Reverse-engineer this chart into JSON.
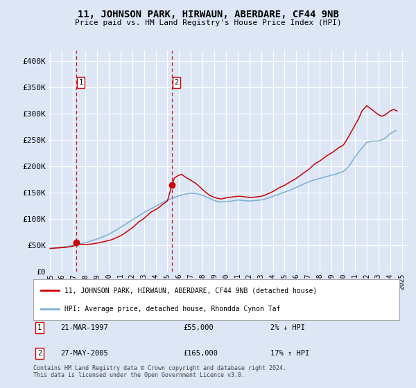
{
  "title": "11, JOHNSON PARK, HIRWAUN, ABERDARE, CF44 9NB",
  "subtitle": "Price paid vs. HM Land Registry's House Price Index (HPI)",
  "background_color": "#dce6f5",
  "plot_bg_color": "#dce6f5",
  "transactions": [
    {
      "num": 1,
      "date": "21-MAR-1997",
      "price": 55000,
      "year": 1997.22,
      "pct": "2%",
      "dir": "↓"
    },
    {
      "num": 2,
      "date": "27-MAY-2005",
      "price": 165000,
      "year": 2005.4,
      "pct": "17%",
      "dir": "↑"
    }
  ],
  "hpi_x": [
    1995.0,
    1995.5,
    1996.0,
    1996.5,
    1997.0,
    1997.5,
    1998.0,
    1998.5,
    1999.0,
    1999.5,
    2000.0,
    2000.5,
    2001.0,
    2001.5,
    2002.0,
    2002.5,
    2003.0,
    2003.5,
    2004.0,
    2004.5,
    2005.0,
    2005.5,
    2006.0,
    2006.5,
    2007.0,
    2007.5,
    2008.0,
    2008.5,
    2009.0,
    2009.5,
    2010.0,
    2010.5,
    2011.0,
    2011.5,
    2012.0,
    2012.5,
    2013.0,
    2013.5,
    2014.0,
    2014.5,
    2015.0,
    2015.5,
    2016.0,
    2016.5,
    2017.0,
    2017.5,
    2018.0,
    2018.5,
    2019.0,
    2019.5,
    2020.0,
    2020.5,
    2021.0,
    2021.5,
    2022.0,
    2022.5,
    2023.0,
    2023.5,
    2024.0,
    2024.5
  ],
  "hpi_y": [
    44000,
    45000,
    46500,
    48000,
    50000,
    52000,
    55000,
    58000,
    62000,
    66000,
    71000,
    77000,
    84000,
    91000,
    98000,
    105000,
    112000,
    118000,
    124000,
    130000,
    136000,
    140000,
    144000,
    147000,
    149000,
    148000,
    145000,
    140000,
    135000,
    132000,
    133000,
    134000,
    136000,
    135000,
    134000,
    135000,
    136000,
    139000,
    143000,
    147000,
    151000,
    155000,
    160000,
    165000,
    170000,
    174000,
    177000,
    180000,
    183000,
    186000,
    190000,
    200000,
    218000,
    232000,
    245000,
    248000,
    248000,
    252000,
    262000,
    268000
  ],
  "paid_x": [
    1995.0,
    1995.3,
    1995.6,
    1996.0,
    1996.3,
    1996.6,
    1997.0,
    1997.22,
    1997.5,
    1997.8,
    1998.1,
    1998.4,
    1998.7,
    1999.0,
    1999.3,
    1999.6,
    2000.0,
    2000.3,
    2000.6,
    2001.0,
    2001.3,
    2001.6,
    2002.0,
    2002.3,
    2002.6,
    2003.0,
    2003.3,
    2003.6,
    2004.0,
    2004.3,
    2004.6,
    2005.0,
    2005.4,
    2005.6,
    2005.9,
    2006.2,
    2006.5,
    2006.8,
    2007.1,
    2007.4,
    2007.7,
    2008.0,
    2008.3,
    2008.6,
    2009.0,
    2009.3,
    2009.6,
    2010.0,
    2010.3,
    2010.6,
    2011.0,
    2011.3,
    2011.6,
    2012.0,
    2012.3,
    2012.6,
    2013.0,
    2013.3,
    2013.6,
    2014.0,
    2014.3,
    2014.6,
    2015.0,
    2015.3,
    2015.6,
    2016.0,
    2016.3,
    2016.6,
    2017.0,
    2017.3,
    2017.6,
    2018.0,
    2018.3,
    2018.6,
    2019.0,
    2019.3,
    2019.6,
    2020.0,
    2020.3,
    2020.6,
    2021.0,
    2021.3,
    2021.6,
    2022.0,
    2022.3,
    2022.6,
    2023.0,
    2023.3,
    2023.6,
    2024.0,
    2024.3,
    2024.6
  ],
  "paid_y": [
    44000,
    44500,
    45000,
    45500,
    46000,
    47000,
    48500,
    55000,
    52000,
    51000,
    51500,
    52000,
    53000,
    54000,
    55500,
    57000,
    59000,
    61000,
    64000,
    68000,
    72000,
    77000,
    83000,
    89000,
    95000,
    101000,
    107000,
    113000,
    118000,
    122000,
    128000,
    134000,
    165000,
    178000,
    182000,
    185000,
    180000,
    176000,
    172000,
    168000,
    162000,
    156000,
    150000,
    145000,
    141000,
    139000,
    138000,
    140000,
    141000,
    142000,
    143000,
    143000,
    142000,
    141000,
    141000,
    142000,
    143000,
    145000,
    148000,
    152000,
    156000,
    160000,
    164000,
    168000,
    172000,
    177000,
    182000,
    187000,
    193000,
    199000,
    205000,
    210000,
    215000,
    220000,
    225000,
    230000,
    235000,
    240000,
    250000,
    262000,
    278000,
    290000,
    305000,
    315000,
    310000,
    305000,
    298000,
    295000,
    298000,
    305000,
    308000,
    305000
  ],
  "line_color_paid": "#cc0000",
  "line_color_hpi": "#7aafd4",
  "marker_color": "#cc0000",
  "dashed_color": "#cc0000",
  "ylim": [
    0,
    420000
  ],
  "yticks": [
    0,
    50000,
    100000,
    150000,
    200000,
    250000,
    300000,
    350000,
    400000
  ],
  "ytick_labels": [
    "£0",
    "£50K",
    "£100K",
    "£150K",
    "£200K",
    "£250K",
    "£300K",
    "£350K",
    "£400K"
  ],
  "xtick_years": [
    1995,
    1996,
    1997,
    1998,
    1999,
    2000,
    2001,
    2002,
    2003,
    2004,
    2005,
    2006,
    2007,
    2008,
    2009,
    2010,
    2011,
    2012,
    2013,
    2014,
    2015,
    2016,
    2017,
    2018,
    2019,
    2020,
    2021,
    2022,
    2023,
    2024,
    2025
  ],
  "legend_label_paid": "11, JOHNSON PARK, HIRWAUN, ABERDARE, CF44 9NB (detached house)",
  "legend_label_hpi": "HPI: Average price, detached house, Rhondda Cynon Taf",
  "footnote": "Contains HM Land Registry data © Crown copyright and database right 2024.\nThis data is licensed under the Open Government Licence v3.0."
}
